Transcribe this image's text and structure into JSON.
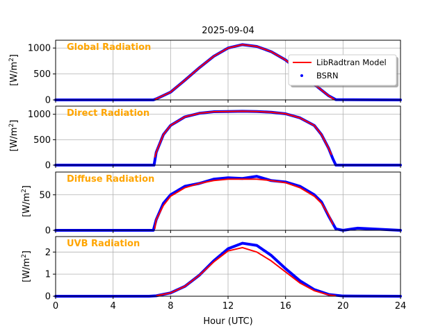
{
  "figure_title": "2025-09-04",
  "xlabel": "Hour (UTC)",
  "x_ticks": [
    0,
    4,
    8,
    12,
    16,
    20,
    24
  ],
  "legend": {
    "placement": "upper right of first panel",
    "model_label": "LibRadtran Model",
    "obs_label": "BSRN"
  },
  "colors": {
    "model": "#ff0000",
    "obs": "#0000ff",
    "panel_title": "#ffa500",
    "grid": "#b0b0b0"
  },
  "chart_data": [
    {
      "type": "line",
      "title": "Global Radiation",
      "ylabel": "[W/m2]",
      "xlim": [
        0,
        24
      ],
      "ylim": [
        0,
        1150
      ],
      "yticks": [
        0,
        500,
        1000
      ],
      "grid": true,
      "series": [
        {
          "name": "LibRadtran Model",
          "x": [
            6.9,
            7,
            8,
            9,
            10,
            11,
            12,
            13,
            14,
            15,
            16,
            17,
            18,
            19,
            19.4
          ],
          "values": [
            5,
            20,
            150,
            380,
            620,
            840,
            1000,
            1065,
            1030,
            930,
            770,
            550,
            300,
            80,
            5
          ]
        },
        {
          "name": "BSRN",
          "x": [
            0,
            6.8,
            7,
            8,
            9,
            10,
            11,
            12,
            13,
            14,
            15,
            16,
            17,
            18,
            19,
            19.5,
            24
          ],
          "values": [
            0,
            0,
            20,
            150,
            380,
            620,
            840,
            1000,
            1065,
            1030,
            930,
            770,
            550,
            300,
            80,
            5,
            0
          ]
        }
      ]
    },
    {
      "type": "line",
      "title": "Direct Radiation",
      "ylabel": "[W/m2]",
      "xlim": [
        0,
        24
      ],
      "ylim": [
        0,
        1160
      ],
      "yticks": [
        0,
        500,
        1000
      ],
      "grid": true,
      "series": [
        {
          "name": "LibRadtran Model",
          "x": [
            6.9,
            7,
            7.5,
            8,
            9,
            10,
            11,
            12,
            13,
            14,
            15,
            16,
            17,
            18,
            18.5,
            19,
            19.2
          ],
          "values": [
            150,
            250,
            600,
            780,
            950,
            1020,
            1050,
            1055,
            1060,
            1055,
            1040,
            1010,
            930,
            780,
            600,
            330,
            200
          ]
        },
        {
          "name": "BSRN",
          "x": [
            0,
            6.85,
            7,
            7.5,
            8,
            9,
            10,
            11,
            12,
            13,
            14,
            15,
            16,
            17,
            18,
            18.5,
            19,
            19.3,
            19.5,
            24
          ],
          "values": [
            0,
            0,
            250,
            600,
            780,
            950,
            1020,
            1050,
            1055,
            1060,
            1055,
            1040,
            1010,
            930,
            780,
            600,
            330,
            120,
            0,
            0
          ]
        }
      ]
    },
    {
      "type": "line",
      "title": "Diffuse Radiation",
      "ylabel": "[W/m2]",
      "xlim": [
        0,
        24
      ],
      "ylim": [
        0,
        82
      ],
      "yticks": [
        0,
        50
      ],
      "grid": true,
      "series": [
        {
          "name": "LibRadtran Model",
          "x": [
            6.9,
            7,
            7.5,
            8,
            9,
            10,
            11,
            12,
            13,
            14,
            15,
            16,
            17,
            18,
            18.5,
            19,
            19.3
          ],
          "values": [
            2,
            15,
            35,
            48,
            60,
            66,
            70,
            72,
            72,
            72,
            70,
            67,
            60,
            48,
            38,
            22,
            8
          ]
        },
        {
          "name": "BSRN",
          "x": [
            0,
            6.8,
            7,
            7.5,
            8,
            9,
            10,
            11,
            12,
            13,
            14,
            15,
            16,
            17,
            18,
            18.5,
            19,
            19.5,
            20,
            21,
            24
          ],
          "values": [
            0,
            0,
            15,
            38,
            50,
            62,
            66,
            72,
            74,
            73,
            76,
            70,
            68,
            62,
            50,
            40,
            20,
            2,
            0,
            3,
            0
          ]
        }
      ]
    },
    {
      "type": "line",
      "title": "UVB Radiation",
      "ylabel": "[W/m2]",
      "xlim": [
        0,
        24
      ],
      "ylim": [
        0,
        2.7
      ],
      "yticks": [
        0,
        1,
        2
      ],
      "grid": true,
      "series": [
        {
          "name": "LibRadtran Model",
          "x": [
            7,
            8,
            9,
            10,
            11,
            12,
            13,
            14,
            15,
            16,
            17,
            18,
            19,
            19.5
          ],
          "values": [
            0.02,
            0.15,
            0.45,
            0.95,
            1.55,
            2.05,
            2.2,
            2.0,
            1.6,
            1.1,
            0.6,
            0.25,
            0.06,
            0.02
          ]
        },
        {
          "name": "BSRN",
          "x": [
            0,
            6.5,
            7,
            8,
            9,
            10,
            11,
            12,
            13,
            14,
            15,
            16,
            17,
            18,
            19,
            20,
            24
          ],
          "values": [
            0,
            0,
            0.02,
            0.15,
            0.45,
            0.95,
            1.6,
            2.15,
            2.4,
            2.3,
            1.85,
            1.25,
            0.7,
            0.3,
            0.08,
            0.01,
            0
          ]
        }
      ]
    }
  ]
}
